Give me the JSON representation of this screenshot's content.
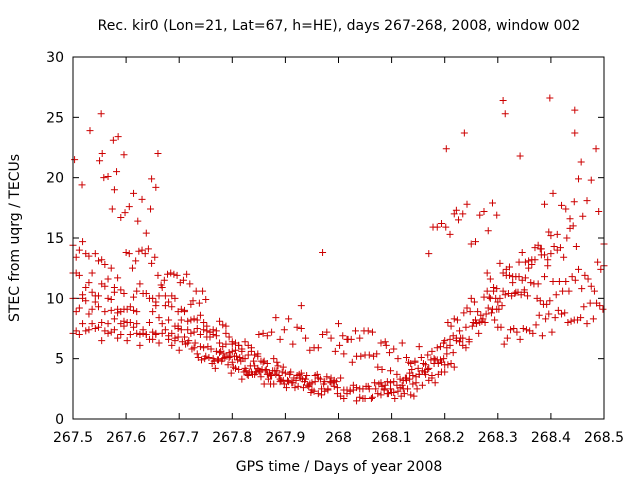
{
  "chart_data": {
    "type": "scatter",
    "title": "Rec. kir0 (Lon=21, Lat=67, h=HE), days 267-268, 2008, window 002",
    "xlabel": "GPS time / Days of year 2008",
    "ylabel": "STEC from uqrg / TECUs",
    "xlim": [
      267.5,
      268.5
    ],
    "ylim": [
      0,
      30
    ],
    "xticks": [
      267.5,
      267.6,
      267.7,
      267.8,
      267.9,
      268.0,
      268.1,
      268.2,
      268.3,
      268.4,
      268.5
    ],
    "xtick_labels": [
      "267.5",
      "267.6",
      "267.7",
      "267.8",
      "267.9",
      "268",
      "268.1",
      "268.2",
      "268.3",
      "268.4",
      "268.5"
    ],
    "yticks": [
      0,
      5,
      10,
      15,
      20,
      25,
      30
    ],
    "ytick_labels": [
      "0",
      "5",
      "10",
      "15",
      "20",
      "25",
      "30"
    ],
    "grid": false,
    "marker": "+",
    "color": "#cc0000",
    "series": [
      {
        "name": "STEC",
        "x": [],
        "y": []
      }
    ],
    "arcs": [
      {
        "x0": 267.5,
        "x1": 267.6,
        "y0": 14,
        "y1": 11,
        "step": 0.006,
        "jitter": 1.2
      },
      {
        "x0": 267.5,
        "x1": 267.62,
        "y0": 11.5,
        "y1": 9,
        "step": 0.006,
        "jitter": 1.0
      },
      {
        "x0": 267.5,
        "x1": 267.66,
        "y0": 9.5,
        "y1": 7.5,
        "step": 0.006,
        "jitter": 1.0
      },
      {
        "x0": 267.5,
        "x1": 267.7,
        "y0": 7.5,
        "y1": 6.5,
        "step": 0.006,
        "jitter": 0.8
      },
      {
        "x0": 267.55,
        "x1": 267.65,
        "y0": 20,
        "y1": 16,
        "step": 0.008,
        "jitter": 2.0
      },
      {
        "x0": 267.6,
        "x1": 267.75,
        "y0": 14,
        "y1": 10,
        "step": 0.006,
        "jitter": 1.2
      },
      {
        "x0": 267.62,
        "x1": 267.8,
        "y0": 11,
        "y1": 7,
        "step": 0.006,
        "jitter": 1.0
      },
      {
        "x0": 267.65,
        "x1": 267.85,
        "y0": 9,
        "y1": 5.5,
        "step": 0.006,
        "jitter": 1.0
      },
      {
        "x0": 267.68,
        "x1": 267.9,
        "y0": 7,
        "y1": 4,
        "step": 0.006,
        "jitter": 0.9
      },
      {
        "x0": 267.7,
        "x1": 267.95,
        "y0": 6,
        "y1": 3,
        "step": 0.006,
        "jitter": 0.8
      },
      {
        "x0": 267.75,
        "x1": 268.0,
        "y0": 5,
        "y1": 2.5,
        "step": 0.006,
        "jitter": 0.8
      },
      {
        "x0": 267.8,
        "x1": 268.05,
        "y0": 4,
        "y1": 2,
        "step": 0.006,
        "jitter": 0.7
      },
      {
        "x0": 267.85,
        "x1": 268.1,
        "y0": 8,
        "y1": 5,
        "step": 0.008,
        "jitter": 1.2
      },
      {
        "x0": 267.95,
        "x1": 268.15,
        "y0": 3,
        "y1": 2,
        "step": 0.006,
        "jitter": 0.7
      },
      {
        "x0": 268.0,
        "x1": 268.18,
        "y0": 7,
        "y1": 5,
        "step": 0.008,
        "jitter": 1.0
      },
      {
        "x0": 268.05,
        "x1": 268.2,
        "y0": 2,
        "y1": 4,
        "step": 0.006,
        "jitter": 0.8
      },
      {
        "x0": 268.08,
        "x1": 268.22,
        "y0": 2.5,
        "y1": 5,
        "step": 0.006,
        "jitter": 0.8
      },
      {
        "x0": 268.12,
        "x1": 268.25,
        "y0": 3.5,
        "y1": 7,
        "step": 0.006,
        "jitter": 0.9
      },
      {
        "x0": 268.18,
        "x1": 268.3,
        "y0": 5,
        "y1": 9,
        "step": 0.006,
        "jitter": 1.0
      },
      {
        "x0": 268.2,
        "x1": 268.35,
        "y0": 7,
        "y1": 11,
        "step": 0.006,
        "jitter": 1.1
      },
      {
        "x0": 268.25,
        "x1": 268.4,
        "y0": 9,
        "y1": 13,
        "step": 0.006,
        "jitter": 1.2
      },
      {
        "x0": 268.28,
        "x1": 268.45,
        "y0": 11,
        "y1": 15,
        "step": 0.006,
        "jitter": 1.4
      },
      {
        "x0": 268.3,
        "x1": 268.5,
        "y0": 7,
        "y1": 9,
        "step": 0.006,
        "jitter": 1.0
      },
      {
        "x0": 268.35,
        "x1": 268.5,
        "y0": 10,
        "y1": 12,
        "step": 0.006,
        "jitter": 1.2
      },
      {
        "x0": 268.17,
        "x1": 268.3,
        "y0": 14,
        "y1": 18,
        "step": 0.008,
        "jitter": 2.0
      },
      {
        "x0": 268.38,
        "x1": 268.48,
        "y0": 16,
        "y1": 20,
        "step": 0.008,
        "jitter": 2.5
      }
    ],
    "outliers": [
      [
        267.503,
        21.5
      ],
      [
        267.517,
        19.4
      ],
      [
        267.532,
        23.9
      ],
      [
        267.553,
        25.3
      ],
      [
        267.555,
        22.0
      ],
      [
        267.576,
        23.1
      ],
      [
        267.585,
        23.4
      ],
      [
        267.596,
        21.9
      ],
      [
        267.578,
        19.0
      ],
      [
        267.648,
        19.9
      ],
      [
        267.656,
        19.2
      ],
      [
        267.66,
        22.0
      ],
      [
        267.97,
        13.8
      ],
      [
        267.93,
        9.4
      ],
      [
        268.203,
        22.4
      ],
      [
        268.222,
        17.3
      ],
      [
        268.237,
        23.7
      ],
      [
        268.31,
        26.4
      ],
      [
        268.314,
        25.3
      ],
      [
        268.342,
        21.8
      ],
      [
        268.398,
        26.6
      ],
      [
        268.445,
        25.6
      ],
      [
        268.445,
        23.7
      ],
      [
        268.457,
        21.3
      ],
      [
        268.485,
        22.4
      ],
      [
        268.49,
        17.2
      ],
      [
        268.5,
        14.5
      ]
    ]
  }
}
